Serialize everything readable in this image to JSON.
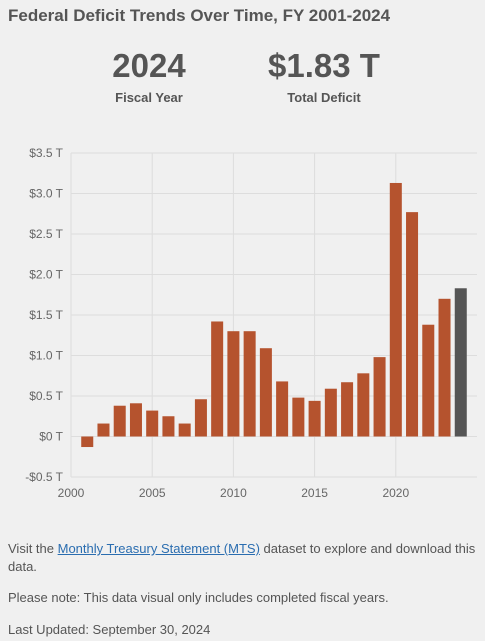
{
  "title": "Federal Deficit Trends Over Time, FY 2001-2024",
  "stats": {
    "year_value": "2024",
    "year_label": "Fiscal Year",
    "deficit_value": "$1.83 T",
    "deficit_label": "Total Deficit"
  },
  "colors": {
    "bar": "#b5532e",
    "highlight_bar": "#555555",
    "grid": "#dddddd"
  },
  "chart_data": {
    "type": "bar",
    "categories": [
      "2001",
      "2002",
      "2003",
      "2004",
      "2005",
      "2006",
      "2007",
      "2008",
      "2009",
      "2010",
      "2011",
      "2012",
      "2013",
      "2014",
      "2015",
      "2016",
      "2017",
      "2018",
      "2019",
      "2020",
      "2021",
      "2022",
      "2023",
      "2024"
    ],
    "values": [
      -0.13,
      0.16,
      0.38,
      0.41,
      0.32,
      0.25,
      0.16,
      0.46,
      1.42,
      1.3,
      1.3,
      1.09,
      0.68,
      0.48,
      0.44,
      0.59,
      0.67,
      0.78,
      0.98,
      3.13,
      2.77,
      1.38,
      1.7,
      1.83
    ],
    "highlight_category": "2024",
    "y_ticks": [
      -0.5,
      0,
      0.5,
      1.0,
      1.5,
      2.0,
      2.5,
      3.0,
      3.5
    ],
    "y_tick_labels": [
      "-$0.5 T",
      "$0 T",
      "$0.5 T",
      "$1.0 T",
      "$1.5 T",
      "$2.0 T",
      "$2.5 T",
      "$3.0 T",
      "$3.5 T"
    ],
    "x_ticks": [
      2000,
      2005,
      2010,
      2015,
      2020
    ],
    "ylim": [
      -0.5,
      3.5
    ],
    "xlim": [
      2000,
      2025
    ],
    "grid": true,
    "xlabel": "",
    "ylabel": ""
  },
  "footer": {
    "mts_prefix": "Visit the ",
    "mts_link": "Monthly Treasury Statement (MTS)",
    "mts_suffix": " dataset to explore and download this data.",
    "note": "Please note: This data visual only includes completed fiscal years.",
    "updated": "Last Updated: September 30, 2024"
  }
}
